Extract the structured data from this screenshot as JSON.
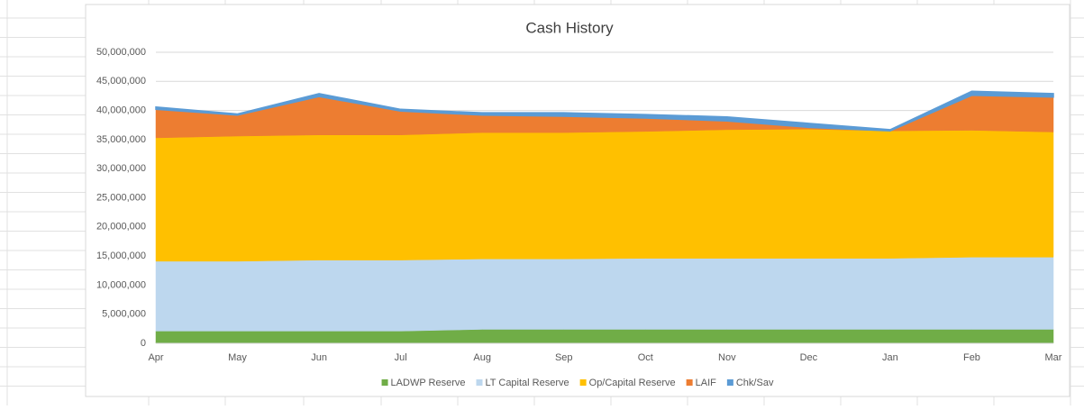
{
  "chart_data": {
    "type": "stacked_area",
    "title": "Cash History",
    "categories": [
      "Apr",
      "May",
      "Jun",
      "Jul",
      "Aug",
      "Sep",
      "Oct",
      "Nov",
      "Dec",
      "Jan",
      "Feb",
      "Mar"
    ],
    "series": [
      {
        "name": "LADWP Reserve",
        "color": "#70ad47",
        "values": [
          2100000,
          2100000,
          2100000,
          2100000,
          2400000,
          2400000,
          2400000,
          2400000,
          2400000,
          2400000,
          2400000,
          2400000
        ]
      },
      {
        "name": "LT Capital Reserve",
        "color": "#bdd7ee",
        "values": [
          12000000,
          12000000,
          12200000,
          12200000,
          12100000,
          12100000,
          12200000,
          12200000,
          12200000,
          12200000,
          12400000,
          12400000
        ]
      },
      {
        "name": "Op/Capital Reserve",
        "color": "#ffc000",
        "values": [
          21200000,
          21500000,
          21500000,
          21500000,
          21700000,
          21700000,
          21800000,
          22100000,
          22200000,
          21900000,
          21800000,
          21500000
        ]
      },
      {
        "name": "LAIF",
        "color": "#ed7d31",
        "values": [
          4900000,
          3600000,
          6600000,
          4100000,
          3000000,
          2800000,
          2300000,
          1500000,
          300000,
          0,
          6000000,
          6000000
        ]
      },
      {
        "name": "Chk/Sav",
        "color": "#5b9bd5",
        "values": [
          400000,
          200000,
          500000,
          300000,
          400000,
          600000,
          600000,
          700000,
          700000,
          200000,
          700000,
          600000
        ]
      }
    ],
    "ylim": [
      0,
      50000000
    ],
    "yticks": [
      0,
      {
        "value": 5000000,
        "label": "5,000,000"
      },
      {
        "value": 10000000,
        "label": "10,000,000"
      },
      {
        "value": 15000000,
        "label": "15,000,000"
      },
      {
        "value": 20000000,
        "label": "20,000,000"
      },
      {
        "value": 25000000,
        "label": "25,000,000"
      },
      {
        "value": 30000000,
        "label": "30,000,000"
      },
      {
        "value": 35000000,
        "label": "35,000,000"
      },
      {
        "value": 40000000,
        "label": "40,000,000"
      },
      {
        "value": 45000000,
        "label": "45,000,000"
      },
      {
        "value": 50000000,
        "label": "50,000,000"
      }
    ],
    "grid": true,
    "legend": "bottom"
  }
}
